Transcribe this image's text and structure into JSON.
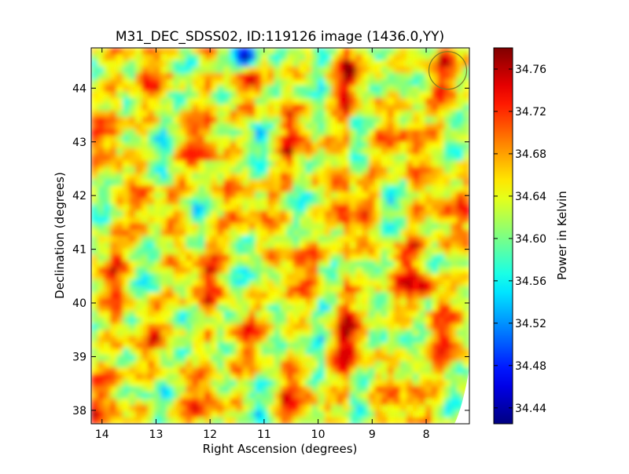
{
  "chart_data": {
    "type": "heatmap",
    "title": "M31_DEC_SDSS02, ID:119126 image (1436.0,YY)",
    "xlabel": "Right Ascension (degrees)",
    "ylabel": "Declination (degrees)",
    "xlim": [
      14.2,
      7.2
    ],
    "ylim": [
      37.75,
      44.75
    ],
    "x_ticks": [
      14,
      13,
      12,
      11,
      10,
      9,
      8
    ],
    "y_ticks": [
      38,
      39,
      40,
      41,
      42,
      43,
      44
    ],
    "colormap": "jet",
    "colorbar": {
      "label": "Power in Kelvin",
      "range": [
        34.425,
        34.78
      ],
      "ticks": [
        "34.44",
        "34.48",
        "34.52",
        "34.56",
        "34.60",
        "34.64",
        "34.68",
        "34.72",
        "34.76"
      ]
    },
    "beam_marker": {
      "ra": 7.6,
      "dec": 44.33,
      "color": "#7f7f1f"
    },
    "features": [
      {
        "ra": 11.35,
        "dec": 44.6,
        "value": 34.43,
        "note": "cold spot"
      },
      {
        "ra": 8.05,
        "dec": 40.3,
        "value": 34.76,
        "note": "hot spot"
      },
      {
        "ra": 9.5,
        "dec": 39.0,
        "value": 34.75,
        "note": "hot stripe"
      }
    ],
    "grid": false
  }
}
